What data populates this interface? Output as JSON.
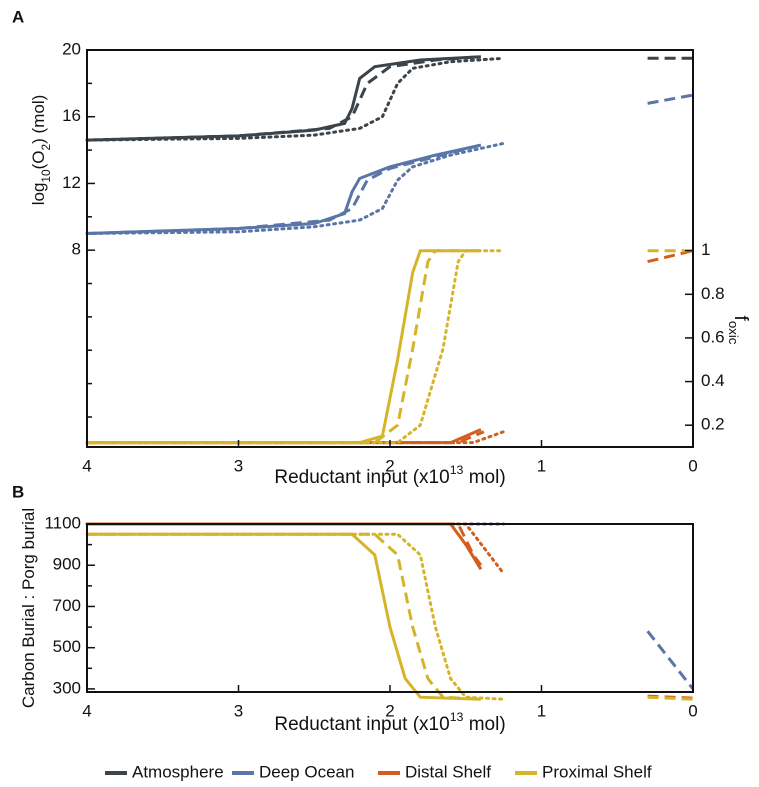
{
  "chart_data": [
    {
      "type": "line",
      "panel": "A",
      "xlabel": [
        {
          "text": "Reductant input (x10"
        },
        {
          "text": "13",
          "sup": true
        },
        {
          "text": " mol)"
        }
      ],
      "ylabel": [
        {
          "text": "log"
        },
        {
          "text": "10",
          "sub": true
        },
        {
          "text": "(O"
        },
        {
          "text": "2",
          "sub": true
        },
        {
          "text": ") (mol)"
        }
      ],
      "y2label": [
        {
          "text": "f"
        },
        {
          "text": "oxic",
          "sub": true
        }
      ],
      "xlim": [
        4,
        0
      ],
      "xticks": [
        4,
        3,
        2,
        1,
        0
      ],
      "ylim": [
        -3.8,
        20
      ],
      "yticks": [
        8,
        12,
        16,
        20
      ],
      "yminorticks": [
        -2,
        0,
        2,
        4,
        6,
        10,
        14,
        18
      ],
      "y2lim": [
        0.1,
        1.92
      ],
      "y2ticks": [
        0.2,
        0.4,
        0.6,
        0.8,
        1
      ],
      "series": [
        {
          "name": "Atmosphere",
          "color": "#3d4449",
          "lines": [
            {
              "style": "solid",
              "x": [
                4,
                3,
                2.5,
                2.3,
                2.25,
                2.2,
                2.1,
                1.8,
                1.4
              ],
              "values": [
                14.6,
                14.85,
                15.2,
                15.6,
                16.5,
                18.3,
                19.0,
                19.4,
                19.6
              ]
            },
            {
              "style": "dashed",
              "x": [
                4,
                3,
                2.4,
                2.25,
                2.15,
                2.0,
                1.7,
                1.4
              ],
              "values": [
                14.6,
                14.85,
                15.3,
                16.0,
                18.0,
                19.0,
                19.4,
                19.6
              ]
            },
            {
              "style": "dotted",
              "x": [
                4,
                3,
                2.5,
                2.2,
                2.05,
                1.95,
                1.85,
                1.6,
                1.25
              ],
              "values": [
                14.6,
                14.7,
                14.9,
                15.3,
                16.0,
                18.0,
                18.9,
                19.3,
                19.5
              ]
            },
            {
              "style": "dashed",
              "x": [
                0.3,
                0
              ],
              "values": [
                19.5,
                19.5
              ]
            }
          ]
        },
        {
          "name": "Deep Ocean",
          "color": "#5a75a8",
          "lines": [
            {
              "style": "solid",
              "x": [
                4,
                3,
                2.5,
                2.3,
                2.25,
                2.2,
                2.0,
                1.7,
                1.4
              ],
              "values": [
                9.0,
                9.3,
                9.6,
                10.2,
                11.5,
                12.3,
                13.0,
                13.7,
                14.3
              ]
            },
            {
              "style": "dashed",
              "x": [
                4,
                3,
                2.4,
                2.25,
                2.15,
                2.0,
                1.7,
                1.4
              ],
              "values": [
                9.0,
                9.3,
                9.8,
                10.5,
                12.2,
                12.9,
                13.6,
                14.3
              ]
            },
            {
              "style": "dotted",
              "x": [
                4,
                3,
                2.5,
                2.2,
                2.05,
                1.95,
                1.85,
                1.6,
                1.25
              ],
              "values": [
                9.0,
                9.1,
                9.4,
                9.8,
                10.5,
                12.2,
                13.0,
                13.7,
                14.4
              ]
            },
            {
              "style": "dashed",
              "x": [
                0.3,
                0
              ],
              "values": [
                16.8,
                17.3
              ]
            }
          ]
        },
        {
          "name": "Distal Shelf",
          "color": "#d35f1e",
          "axis": "y2",
          "lines": [
            {
              "style": "solid",
              "x": [
                4,
                1.6,
                1.5,
                1.4
              ],
              "values": [
                0.12,
                0.12,
                0.15,
                0.18
              ]
            },
            {
              "style": "dashed",
              "x": [
                4,
                1.55,
                1.45,
                1.38
              ],
              "values": [
                0.12,
                0.12,
                0.15,
                0.17
              ]
            },
            {
              "style": "dotted",
              "x": [
                4,
                1.45,
                1.25
              ],
              "values": [
                0.12,
                0.12,
                0.17
              ]
            },
            {
              "style": "dashed",
              "x": [
                0.3,
                0
              ],
              "values": [
                0.95,
                1.0
              ]
            }
          ]
        },
        {
          "name": "Proximal Shelf",
          "color": "#d6b42a",
          "axis": "y2",
          "lines": [
            {
              "style": "solid",
              "x": [
                4,
                2.2,
                2.05,
                1.95,
                1.85,
                1.8,
                1.4
              ],
              "values": [
                0.12,
                0.12,
                0.15,
                0.5,
                0.9,
                1.0,
                1.0
              ]
            },
            {
              "style": "dashed",
              "x": [
                4,
                2.1,
                1.95,
                1.85,
                1.75,
                1.7,
                1.4
              ],
              "values": [
                0.12,
                0.12,
                0.2,
                0.55,
                0.95,
                1.0,
                1.0
              ]
            },
            {
              "style": "dotted",
              "x": [
                4,
                1.95,
                1.8,
                1.65,
                1.55,
                1.5,
                1.25
              ],
              "values": [
                0.12,
                0.12,
                0.2,
                0.55,
                0.95,
                1.0,
                1.0
              ]
            },
            {
              "style": "dashed",
              "x": [
                0.3,
                0
              ],
              "values": [
                1.0,
                1.0
              ]
            }
          ]
        }
      ]
    },
    {
      "type": "line",
      "panel": "B",
      "xlabel": [
        {
          "text": "Reductant input (x10"
        },
        {
          "text": "13",
          "sup": true
        },
        {
          "text": " mol)"
        }
      ],
      "ylabel": [
        {
          "text": "Carbon Burial : Porg burial"
        }
      ],
      "xlim": [
        4,
        0
      ],
      "xticks": [
        4,
        3,
        2,
        1,
        0
      ],
      "ylim": [
        285,
        1100
      ],
      "yticks": [
        300,
        500,
        700,
        900,
        1100
      ],
      "yminorticks": [
        400,
        600,
        800,
        1000
      ],
      "series": [
        {
          "color": "#5a75a8",
          "lines": [
            {
              "style": "dotted",
              "x": [
                4,
                1.25
              ],
              "values": [
                1100,
                1100
              ]
            },
            {
              "style": "dashed",
              "x": [
                0.3,
                0
              ],
              "values": [
                580,
                300
              ]
            }
          ]
        },
        {
          "color": "#d35f1e",
          "lines": [
            {
              "style": "solid",
              "x": [
                4,
                1.6,
                1.5,
                1.4
              ],
              "values": [
                1100,
                1100,
                1000,
                880
              ]
            },
            {
              "style": "dashed",
              "x": [
                4,
                1.55,
                1.45,
                1.4
              ],
              "values": [
                1100,
                1100,
                950,
                900
              ]
            },
            {
              "style": "dotted",
              "x": [
                4,
                1.5,
                1.25
              ],
              "values": [
                1100,
                1100,
                860
              ]
            },
            {
              "style": "dashed",
              "x": [
                0.3,
                0
              ],
              "values": [
                265,
                255
              ]
            }
          ]
        },
        {
          "color": "#d6b42a",
          "lines": [
            {
              "style": "solid",
              "x": [
                4,
                2.25,
                2.1,
                2.0,
                1.9,
                1.8,
                1.4
              ],
              "values": [
                1050,
                1050,
                950,
                600,
                350,
                260,
                250
              ]
            },
            {
              "style": "dashed",
              "x": [
                4,
                2.1,
                1.95,
                1.85,
                1.75,
                1.65,
                1.4
              ],
              "values": [
                1050,
                1050,
                950,
                600,
                350,
                260,
                250
              ]
            },
            {
              "style": "dotted",
              "x": [
                4,
                1.95,
                1.8,
                1.7,
                1.6,
                1.5,
                1.25
              ],
              "values": [
                1050,
                1050,
                950,
                600,
                350,
                260,
                250
              ]
            },
            {
              "style": "dashed",
              "x": [
                0.3,
                0
              ],
              "values": [
                260,
                250
              ]
            }
          ]
        }
      ]
    }
  ]
}
